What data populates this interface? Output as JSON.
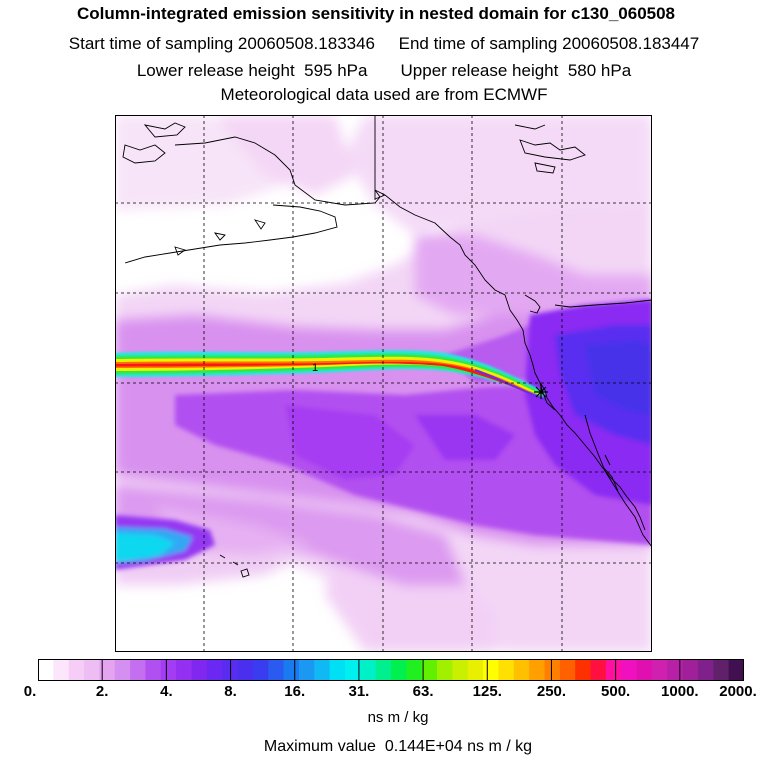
{
  "header": {
    "title": "Column-integrated emission sensitivity in nested domain for c130_060508",
    "start_label": "Start time of sampling",
    "start_value": "20060508.183346",
    "end_label": "End time of sampling",
    "end_value": "20060508.183447",
    "lower_label": "Lower release height",
    "lower_value": "595 hPa",
    "upper_label": "Upper release height",
    "upper_value": "580 hPa",
    "met_text": "Meteorological data used are from ECMWF"
  },
  "map": {
    "contour_label": "1",
    "colors": {
      "background": "#ffffff",
      "light_pink": "#f4d8f6",
      "mid_magenta": "#dc98ef",
      "purple": "#b450f0",
      "violet": "#8a2df2",
      "deep_blue": "#4a2ee8",
      "cyan": "#10eeee",
      "green": "#20e850",
      "yellow": "#f0f000",
      "red": "#f81818"
    }
  },
  "colorbar": {
    "tick_labels": [
      "0.",
      "2.",
      "4.",
      "8.",
      "16.",
      "31.",
      "63.",
      "125.",
      "250.",
      "500.",
      "1000.",
      "2000."
    ],
    "swatches": [
      "#ffffff",
      "#fbe6fb",
      "#f5cdf6",
      "#eebdf4",
      "#e4a4f0",
      "#d48ff0",
      "#c36ff0",
      "#b050f0",
      "#a33cf2",
      "#9430f2",
      "#8028f0",
      "#6a28f2",
      "#5a2cf0",
      "#4a30ee",
      "#3a3cef",
      "#2a5aef",
      "#1a7af0",
      "#1a98f2",
      "#10b8f4",
      "#00e0f4",
      "#00f0f0",
      "#00f0c8",
      "#00f090",
      "#00f050",
      "#20f020",
      "#60f000",
      "#a0f000",
      "#c8f000",
      "#e8f000",
      "#ffff00",
      "#ffe000",
      "#ffc000",
      "#ffa000",
      "#ff8000",
      "#ff6000",
      "#ff3000",
      "#ff1040",
      "#ff10a0",
      "#f010c0",
      "#e010b0",
      "#d020b0",
      "#b820a8",
      "#a0209a",
      "#80208a",
      "#60206a",
      "#401050"
    ],
    "units": "ns m / kg"
  },
  "footer": {
    "max_label": "Maximum value",
    "max_value": "0.144E+04",
    "max_unit": "ns m / kg"
  }
}
